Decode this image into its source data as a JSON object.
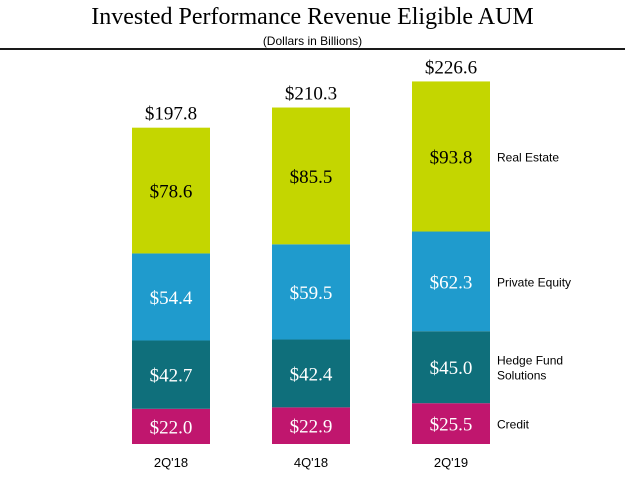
{
  "chart_data": {
    "type": "stacked-bar",
    "title": "Invested Performance Revenue Eligible AUM",
    "subtitle": "(Dollars in Billions)",
    "categories": [
      "2Q'18",
      "4Q'18",
      "2Q'19"
    ],
    "series": [
      {
        "name": "Credit",
        "label_lines": [
          "Credit"
        ],
        "color": "#c0166e",
        "label_color": "light",
        "values": [
          22.0,
          22.9,
          25.5
        ],
        "labels": [
          "$22.0",
          "$22.9",
          "$25.5"
        ]
      },
      {
        "name": "Hedge Fund Solutions",
        "label_lines": [
          "Hedge Fund",
          "Solutions"
        ],
        "color": "#0f6f7b",
        "label_color": "light",
        "values": [
          42.7,
          42.4,
          45.0
        ],
        "labels": [
          "$42.7",
          "$42.4",
          "$45.0"
        ]
      },
      {
        "name": "Private Equity",
        "label_lines": [
          "Private Equity"
        ],
        "color": "#1f9bcd",
        "label_color": "light",
        "values": [
          54.4,
          59.5,
          62.3
        ],
        "labels": [
          "$54.4",
          "$59.5",
          "$62.3"
        ]
      },
      {
        "name": "Real Estate",
        "label_lines": [
          "Real Estate"
        ],
        "color": "#c4d600",
        "label_color": "dark",
        "values": [
          78.6,
          85.5,
          93.8
        ],
        "labels": [
          "$78.6",
          "$85.5",
          "$93.8"
        ]
      }
    ],
    "totals": [
      197.8,
      210.3,
      226.6
    ],
    "total_labels": [
      "$197.8",
      "$210.3",
      "$226.6"
    ],
    "legend_position": "right",
    "grid": false
  }
}
